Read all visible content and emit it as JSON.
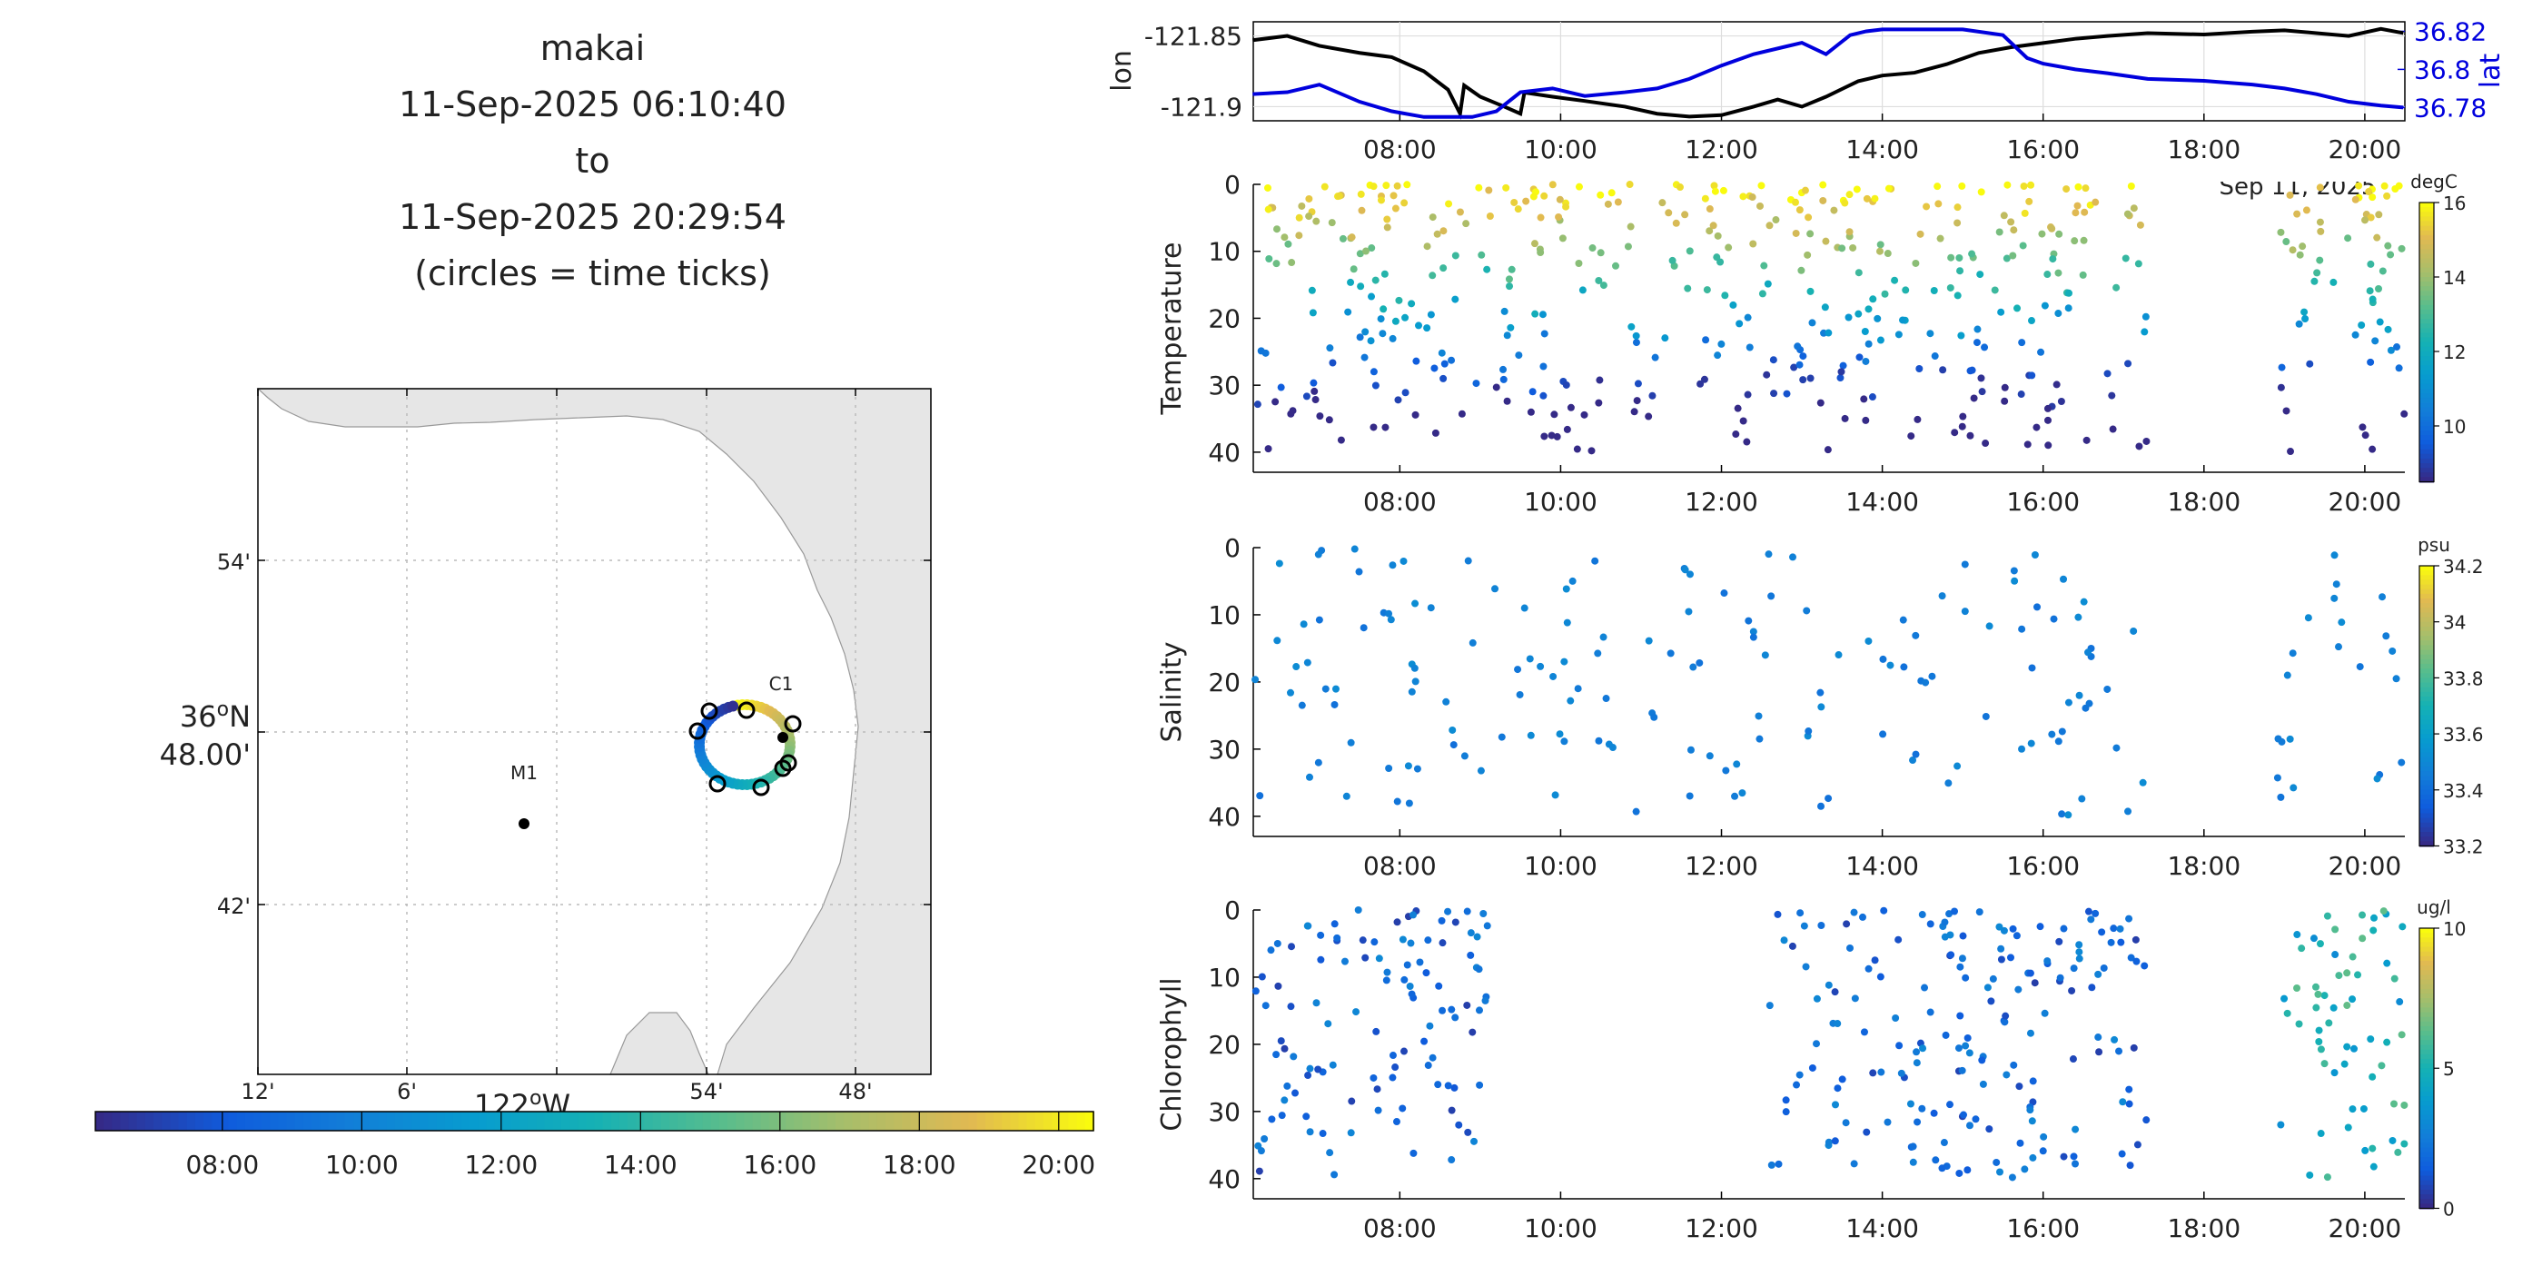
{
  "title": {
    "line1": "makai",
    "line2": "11-Sep-2025 06:10:40",
    "line3": "to",
    "line4": "11-Sep-2025 20:29:54",
    "line5": "(circles = time ticks)"
  },
  "map": {
    "lat_labels": [
      "54'",
      "36°N 48.00'",
      "42'"
    ],
    "lat_label_main_deg": "36",
    "lat_label_main_sub": "48.00'",
    "lon_labels": [
      "12'",
      "6'",
      "122°W",
      "54'",
      "48'"
    ],
    "station_labels": [
      "C1",
      "M1"
    ],
    "colorbar_ticks": [
      "08:00",
      "10:00",
      "12:00",
      "14:00",
      "16:00",
      "18:00",
      "20:00"
    ]
  },
  "chart_data": [
    {
      "type": "line",
      "title": "",
      "ylabel_left": "lon",
      "ylabel_right": "lat",
      "x_ticks": [
        "08:00",
        "10:00",
        "12:00",
        "14:00",
        "16:00",
        "18:00",
        "20:00"
      ],
      "x_corner_label": "Sep 11, 2025",
      "left_ticks": [
        "-121.85",
        "-121.9"
      ],
      "right_ticks": [
        "36.82",
        "36.8",
        "36.78"
      ],
      "series": [
        {
          "name": "lon",
          "color": "#000000",
          "x": [
            6.17,
            6.6,
            7.0,
            7.5,
            7.9,
            8.3,
            8.6,
            8.75,
            8.8,
            9.0,
            9.3,
            9.5,
            9.55,
            9.9,
            10.3,
            10.8,
            11.2,
            11.6,
            12.0,
            12.4,
            12.7,
            13.0,
            13.3,
            13.7,
            14.0,
            14.4,
            14.8,
            15.2,
            15.6,
            16.0,
            16.4,
            16.8,
            17.3,
            18.0,
            18.6,
            19.0,
            19.4,
            19.8,
            20.2,
            20.48
          ],
          "y": [
            -121.853,
            -121.85,
            -121.857,
            -121.862,
            -121.865,
            -121.875,
            -121.888,
            -121.905,
            -121.885,
            -121.893,
            -121.9,
            -121.905,
            -121.89,
            -121.893,
            -121.896,
            -121.9,
            -121.905,
            -121.907,
            -121.906,
            -121.9,
            -121.895,
            -121.9,
            -121.893,
            -121.882,
            -121.878,
            -121.876,
            -121.87,
            -121.862,
            -121.858,
            -121.855,
            -121.852,
            -121.85,
            -121.848,
            -121.849,
            -121.847,
            -121.846,
            -121.848,
            -121.85,
            -121.845,
            -121.848
          ]
        },
        {
          "name": "lat",
          "color": "#0000dd",
          "x": [
            6.17,
            6.6,
            7.0,
            7.5,
            7.9,
            8.3,
            8.6,
            8.9,
            9.2,
            9.5,
            9.9,
            10.3,
            10.8,
            11.2,
            11.6,
            12.0,
            12.4,
            12.8,
            13.0,
            13.3,
            13.6,
            13.8,
            14.0,
            14.5,
            15.0,
            15.5,
            15.8,
            16.0,
            16.4,
            16.8,
            17.3,
            18.0,
            18.6,
            19.0,
            19.4,
            19.8,
            20.2,
            20.48
          ],
          "y": [
            36.787,
            36.788,
            36.792,
            36.783,
            36.778,
            36.775,
            36.775,
            36.775,
            36.778,
            36.788,
            36.79,
            36.786,
            36.788,
            36.79,
            36.795,
            36.802,
            36.808,
            36.812,
            36.814,
            36.808,
            36.818,
            36.82,
            36.821,
            36.821,
            36.821,
            36.818,
            36.806,
            36.803,
            36.8,
            36.798,
            36.795,
            36.794,
            36.792,
            36.79,
            36.787,
            36.783,
            36.781,
            36.78
          ]
        }
      ]
    },
    {
      "type": "scatter",
      "ylabel": "Temperature",
      "unit": "degC",
      "ylim": [
        43,
        0
      ],
      "y_ticks": [
        "0",
        "10",
        "20",
        "30",
        "40"
      ],
      "x_ticks": [
        "08:00",
        "10:00",
        "12:00",
        "14:00",
        "16:00",
        "18:00",
        "20:00"
      ],
      "colorbar_ticks": [
        "16",
        "14",
        "12",
        "10"
      ],
      "clim": [
        8.5,
        16
      ],
      "segments": [
        [
          6.2,
          17.3
        ],
        [
          18.9,
          20.5
        ]
      ],
      "seed": 11
    },
    {
      "type": "scatter",
      "ylabel": "Salinity",
      "unit": "psu",
      "ylim": [
        43,
        0
      ],
      "y_ticks": [
        "0",
        "10",
        "20",
        "30",
        "40"
      ],
      "x_ticks": [
        "08:00",
        "10:00",
        "12:00",
        "14:00",
        "16:00",
        "18:00",
        "20:00"
      ],
      "colorbar_ticks": [
        "34.2",
        "34",
        "33.8",
        "33.6",
        "33.4",
        "33.2"
      ],
      "clim": [
        33.2,
        34.2
      ],
      "segments": [
        [
          6.2,
          17.3
        ],
        [
          18.9,
          20.5
        ]
      ],
      "seed": 23
    },
    {
      "type": "scatter",
      "ylabel": "Chlorophyll",
      "unit": "ug/l",
      "ylim": [
        43,
        0
      ],
      "y_ticks": [
        "0",
        "10",
        "20",
        "30",
        "40"
      ],
      "x_ticks": [
        "08:00",
        "10:00",
        "12:00",
        "14:00",
        "16:00",
        "18:00",
        "20:00"
      ],
      "colorbar_ticks": [
        "10",
        "5",
        "0"
      ],
      "clim": [
        0,
        10
      ],
      "segments": [
        [
          6.2,
          9.1
        ],
        [
          12.6,
          17.3
        ],
        [
          18.9,
          20.5
        ]
      ],
      "seed": 37
    }
  ]
}
